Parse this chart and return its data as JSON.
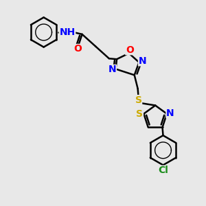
{
  "background_color": "#e8e8e8",
  "atom_colors": {
    "C": "#000000",
    "N": "#0000ff",
    "O": "#ff0000",
    "S": "#ccaa00",
    "Cl": "#1a8c1a",
    "H": "#000000"
  },
  "bond_color": "#000000",
  "bond_width": 1.8,
  "font_size": 9,
  "figsize": [
    3.0,
    3.0
  ],
  "dpi": 100
}
